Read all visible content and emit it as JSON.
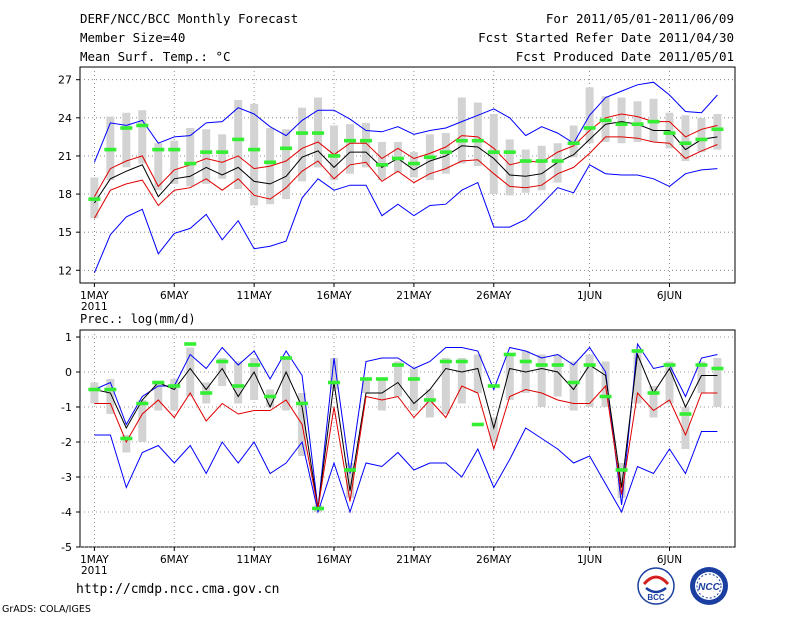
{
  "header": {
    "title": "DERF/NCC/BCC Monthly Forecast",
    "member_size": "Member Size=40",
    "variable": "Mean Surf. Temp.: °C",
    "forecast_period": "For 2011/05/01-2011/06/09",
    "fcst_start": "Fcst Started Refer Date 2011/04/30",
    "fcst_produced": "Fcst Produced Date 2011/05/01"
  },
  "footer": {
    "url": "http://cmdp.ncc.cma.gov.cn",
    "software": "GrADS: COLA/IGES"
  },
  "logos": [
    "BCC",
    "NCC"
  ],
  "colors": {
    "envelope": "#0000ff",
    "ensemble_mean": "#000000",
    "median": "#e00000",
    "member_range_bar": "#d3d3d3",
    "member_marker": "#33ee33",
    "grid": "#777777"
  },
  "chart_data": [
    {
      "type": "line",
      "title": "Mean Surf. Temp.: °C",
      "x_ticks": [
        "1MAY",
        "6MAY",
        "11MAY",
        "16MAY",
        "21MAY",
        "26MAY",
        "1JUN",
        "6JUN"
      ],
      "x_tick_days": [
        1,
        6,
        11,
        16,
        21,
        26,
        32,
        37
      ],
      "year_label": "2011",
      "ylim": [
        11,
        28
      ],
      "yticks": [
        12,
        15,
        18,
        21,
        24,
        27
      ],
      "days": 40,
      "series": [
        {
          "name": "max",
          "color": "#0000ff",
          "values": [
            20.5,
            23.6,
            23.4,
            23.8,
            22.0,
            22.5,
            22.6,
            23.6,
            23.7,
            24.8,
            24.3,
            23.3,
            22.6,
            23.8,
            24.6,
            24.6,
            23.9,
            23.0,
            22.9,
            23.3,
            22.7,
            23.0,
            23.2,
            23.7,
            24.2,
            24.7,
            24.0,
            22.6,
            23.3,
            22.8,
            22.0,
            24.2,
            25.6,
            26.1,
            26.6,
            26.8,
            25.8,
            24.5,
            24.4,
            25.8
          ]
        },
        {
          "name": "min",
          "color": "#0000ff",
          "values": [
            11.8,
            14.8,
            16.2,
            16.8,
            13.3,
            14.9,
            15.3,
            16.4,
            14.4,
            15.9,
            13.7,
            13.9,
            14.3,
            17.7,
            19.2,
            18.3,
            18.7,
            18.7,
            16.3,
            17.2,
            16.3,
            17.1,
            17.2,
            18.3,
            18.9,
            15.4,
            15.4,
            16.0,
            17.2,
            18.5,
            18.1,
            20.3,
            19.6,
            19.5,
            19.5,
            19.2,
            18.6,
            19.6,
            19.9,
            20.0
          ]
        },
        {
          "name": "ensemble_mean",
          "color": "#000000",
          "values": [
            17.3,
            19.2,
            19.8,
            20.3,
            17.8,
            19.2,
            19.4,
            20.1,
            19.5,
            20.1,
            19.0,
            18.8,
            19.4,
            20.9,
            21.4,
            20.1,
            21.3,
            21.3,
            20.1,
            20.8,
            19.9,
            20.6,
            21.0,
            21.8,
            21.7,
            20.8,
            19.5,
            19.4,
            19.6,
            20.5,
            21.1,
            22.3,
            23.5,
            23.7,
            23.5,
            23.0,
            23.0,
            21.5,
            22.3,
            22.5
          ]
        },
        {
          "name": "median",
          "color": "#e00000",
          "values": [
            16.1,
            18.3,
            18.8,
            19.1,
            17.1,
            18.3,
            18.5,
            19.2,
            18.3,
            19.2,
            17.9,
            17.6,
            18.5,
            19.8,
            20.6,
            19.2,
            20.3,
            20.5,
            19.0,
            19.8,
            18.9,
            19.6,
            20.0,
            20.6,
            20.7,
            19.6,
            18.6,
            18.5,
            18.7,
            19.6,
            20.1,
            21.2,
            22.5,
            22.5,
            22.4,
            22.1,
            22.0,
            20.8,
            21.4,
            21.9
          ]
        },
        {
          "name": "median_upper",
          "color": "#e00000",
          "values": [
            17.8,
            20.0,
            20.6,
            21.0,
            18.6,
            19.9,
            20.3,
            20.8,
            20.5,
            21.0,
            20.0,
            20.2,
            20.6,
            21.6,
            22.1,
            21.1,
            22.0,
            22.0,
            20.8,
            21.6,
            20.8,
            21.2,
            21.7,
            22.6,
            22.5,
            21.6,
            20.3,
            20.6,
            20.5,
            21.3,
            21.8,
            23.0,
            24.0,
            24.3,
            24.1,
            23.7,
            23.7,
            22.5,
            23.1,
            23.4
          ]
        }
      ],
      "range_bars": [
        [
          16.1,
          19.3
        ],
        [
          19.1,
          24.1
        ],
        [
          20.1,
          24.4
        ],
        [
          20.4,
          24.6
        ],
        [
          18.3,
          22.0
        ],
        [
          18.8,
          22.2
        ],
        [
          18.6,
          23.2
        ],
        [
          18.8,
          23.1
        ],
        [
          19.2,
          22.7
        ],
        [
          18.4,
          25.4
        ],
        [
          17.1,
          25.1
        ],
        [
          17.2,
          23.2
        ],
        [
          17.6,
          23.1
        ],
        [
          19.0,
          24.8
        ],
        [
          20.1,
          25.6
        ],
        [
          19.1,
          23.4
        ],
        [
          19.6,
          23.5
        ],
        [
          20.1,
          23.6
        ],
        [
          19.1,
          22.1
        ],
        [
          19.7,
          22.1
        ],
        [
          19.3,
          21.3
        ],
        [
          19.1,
          22.7
        ],
        [
          19.6,
          22.8
        ],
        [
          20.4,
          25.6
        ],
        [
          20.2,
          25.2
        ],
        [
          18.0,
          24.3
        ],
        [
          17.9,
          22.3
        ],
        [
          18.1,
          21.5
        ],
        [
          18.3,
          21.8
        ],
        [
          18.9,
          22.0
        ],
        [
          20.9,
          23.4
        ],
        [
          22.0,
          26.4
        ],
        [
          22.1,
          25.7
        ],
        [
          22.0,
          25.6
        ],
        [
          22.1,
          25.3
        ],
        [
          22.1,
          25.5
        ],
        [
          21.6,
          24.4
        ],
        [
          20.6,
          24.2
        ],
        [
          21.3,
          24.0
        ],
        [
          21.5,
          24.3
        ]
      ],
      "markers": [
        17.6,
        21.5,
        23.2,
        23.4,
        21.5,
        21.5,
        20.4,
        21.3,
        21.3,
        22.3,
        21.5,
        20.5,
        21.6,
        22.8,
        22.8,
        21.0,
        22.2,
        22.2,
        20.3,
        20.8,
        20.4,
        20.9,
        21.3,
        22.2,
        22.2,
        21.3,
        21.3,
        20.6,
        20.6,
        20.6,
        22.0,
        23.2,
        23.8,
        23.5,
        23.5,
        23.7,
        22.8,
        22.0,
        22.3,
        23.1
      ]
    },
    {
      "type": "line",
      "title": "Prec.: log(mm/d)",
      "x_ticks": [
        "1MAY",
        "6MAY",
        "11MAY",
        "16MAY",
        "21MAY",
        "26MAY",
        "1JUN",
        "6JUN"
      ],
      "x_tick_days": [
        1,
        6,
        11,
        16,
        21,
        26,
        32,
        37
      ],
      "year_label": "2011",
      "ylim": [
        -5,
        1.2
      ],
      "yticks": [
        -5,
        -4,
        -3,
        -2,
        -1,
        0,
        1
      ],
      "days": 40,
      "series": [
        {
          "name": "max",
          "color": "#0000ff",
          "values": [
            -0.5,
            -0.3,
            -1.5,
            -0.7,
            -0.4,
            -0.4,
            0.5,
            0.1,
            0.7,
            0.2,
            0.6,
            -0.2,
            0.6,
            -0.1,
            -3.9,
            0.4,
            -2.9,
            0.3,
            0.4,
            0.4,
            0.1,
            0.3,
            0.7,
            0.7,
            0.6,
            -0.5,
            0.7,
            0.6,
            0.4,
            0.5,
            0.2,
            0.7,
            0.0,
            -3.8,
            0.8,
            0.1,
            0.2,
            -0.7,
            0.4,
            0.5
          ]
        },
        {
          "name": "min",
          "color": "#0000ff",
          "values": [
            -1.8,
            -1.8,
            -3.3,
            -2.3,
            -2.1,
            -2.6,
            -2.1,
            -2.9,
            -2.0,
            -2.6,
            -2.0,
            -2.9,
            -2.6,
            -2.0,
            -4.0,
            -2.6,
            -4.0,
            -2.6,
            -2.7,
            -2.3,
            -2.8,
            -2.6,
            -2.6,
            -3.0,
            -2.2,
            -3.3,
            -2.5,
            -1.6,
            -1.9,
            -2.2,
            -2.6,
            -2.4,
            -3.2,
            -4.0,
            -2.7,
            -2.9,
            -2.2,
            -2.9,
            -1.7,
            -1.7
          ]
        },
        {
          "name": "ensemble_mean",
          "color": "#000000",
          "values": [
            -0.5,
            -0.6,
            -1.6,
            -0.8,
            -0.3,
            -0.5,
            0.1,
            -0.5,
            0.1,
            -0.7,
            0.0,
            -1.0,
            0.0,
            -1.0,
            -3.9,
            -0.3,
            -3.4,
            -0.6,
            -0.6,
            -0.3,
            -0.9,
            -0.5,
            0.1,
            0.0,
            0.1,
            -1.6,
            0.1,
            0.0,
            0.1,
            0.0,
            -0.5,
            0.2,
            -0.1,
            -3.3,
            0.5,
            -0.6,
            0.1,
            -1.0,
            -0.1,
            -0.1
          ]
        },
        {
          "name": "median",
          "color": "#e00000",
          "values": [
            -0.9,
            -0.9,
            -2.0,
            -1.2,
            -0.8,
            -1.3,
            -0.6,
            -1.4,
            -0.9,
            -1.2,
            -1.1,
            -1.1,
            -0.8,
            -1.5,
            -3.9,
            -1.0,
            -3.7,
            -0.7,
            -0.8,
            -0.7,
            -1.3,
            -0.8,
            -1.3,
            -0.4,
            -0.6,
            -2.2,
            -0.7,
            -0.5,
            -0.6,
            -0.8,
            -0.9,
            -0.9,
            -0.4,
            -3.5,
            -0.6,
            -1.1,
            -0.8,
            -1.8,
            -0.6,
            -0.6
          ]
        }
      ],
      "range_bars": [
        [
          -0.9,
          -0.3
        ],
        [
          -1.2,
          -0.2
        ],
        [
          -2.3,
          -1.8
        ],
        [
          -2.0,
          -0.8
        ],
        [
          -1.1,
          -0.3
        ],
        [
          -1.1,
          -0.2
        ],
        [
          -0.7,
          0.7
        ],
        [
          -0.9,
          -0.3
        ],
        [
          -0.4,
          0.4
        ],
        [
          -0.9,
          0.3
        ],
        [
          -0.8,
          0.4
        ],
        [
          -1.0,
          -0.5
        ],
        [
          -1.1,
          0.4
        ],
        [
          -2.4,
          -0.6
        ],
        [
          -4.0,
          -3.8
        ],
        [
          -0.5,
          0.4
        ],
        [
          -3.6,
          -2.6
        ],
        [
          -0.6,
          -0.2
        ],
        [
          -1.1,
          -0.2
        ],
        [
          -0.7,
          0.3
        ],
        [
          -1.1,
          0.1
        ],
        [
          -1.3,
          -0.5
        ],
        [
          -1.2,
          0.4
        ],
        [
          -0.9,
          0.4
        ],
        [
          -0.6,
          0.5
        ],
        [
          -2.0,
          -1.3
        ],
        [
          -0.8,
          0.5
        ],
        [
          -0.6,
          0.6
        ],
        [
          -1.0,
          0.5
        ],
        [
          -0.7,
          0.5
        ],
        [
          -1.1,
          0.3
        ],
        [
          -1.0,
          0.5
        ],
        [
          -1.0,
          0.3
        ],
        [
          -3.6,
          -2.6
        ],
        [
          -0.9,
          0.6
        ],
        [
          -1.3,
          -0.4
        ],
        [
          -0.9,
          0.3
        ],
        [
          -2.2,
          -1.0
        ],
        [
          -0.6,
          0.3
        ],
        [
          -1.0,
          0.4
        ]
      ],
      "markers": [
        -0.5,
        -0.5,
        -1.9,
        -0.9,
        -0.3,
        -0.4,
        0.8,
        -0.6,
        0.3,
        -0.4,
        0.2,
        -0.7,
        0.4,
        -0.9,
        -3.9,
        -0.3,
        -2.8,
        -0.2,
        -0.2,
        0.2,
        -0.2,
        -0.8,
        0.3,
        0.3,
        -1.5,
        -0.4,
        0.5,
        0.3,
        0.2,
        0.2,
        -0.3,
        0.2,
        -0.7,
        -2.8,
        0.6,
        -0.6,
        0.2,
        -1.2,
        0.2,
        0.1
      ]
    }
  ]
}
